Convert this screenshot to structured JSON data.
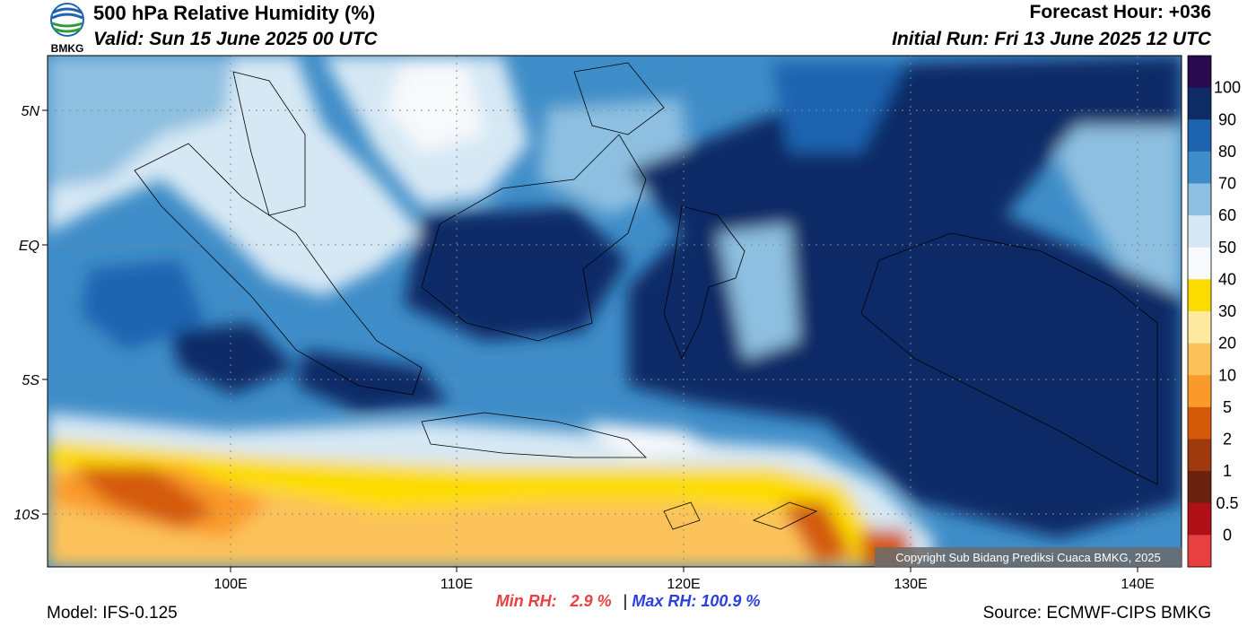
{
  "header": {
    "title": "500 hPa Relative Humidity (%)",
    "valid": "Valid: Sun 15 June 2025 00 UTC",
    "forecast_hour": "Forecast Hour: +036",
    "initial_run": "Initial Run: Fri 13 June 2025 12 UTC"
  },
  "logo": {
    "text": "BMKG"
  },
  "map": {
    "lon_labels": [
      "100E",
      "110E",
      "120E",
      "130E",
      "140E"
    ],
    "lat_labels": [
      "5N",
      "EQ",
      "5S",
      "10S"
    ],
    "copyright": "Copyright Sub Bidang Prediksi Cuaca BMKG, 2025"
  },
  "colorbar": {
    "labels": [
      "100",
      "90",
      "80",
      "70",
      "60",
      "50",
      "40",
      "30",
      "20",
      "10",
      "5",
      "2",
      "1",
      "0.5",
      "0"
    ],
    "colors": [
      "#2a0a4e",
      "#0d2c66",
      "#1e63b0",
      "#3f8dc8",
      "#8dbfe0",
      "#d6e8f4",
      "#f7f9fb",
      "#fcdb00",
      "#fde9a0",
      "#fcc25a",
      "#f99a2a",
      "#d45a0a",
      "#9e3a0e",
      "#6a2210",
      "#b01018",
      "#e84040"
    ]
  },
  "stats": {
    "min_label": "Min RH:",
    "min_value": "2.9 %",
    "separator": "|",
    "max_label": "Max RH:",
    "max_value": "100.9 %"
  },
  "footer": {
    "model": "Model: IFS-0.125",
    "source": "Source: ECMWF-CIPS BMKG"
  }
}
